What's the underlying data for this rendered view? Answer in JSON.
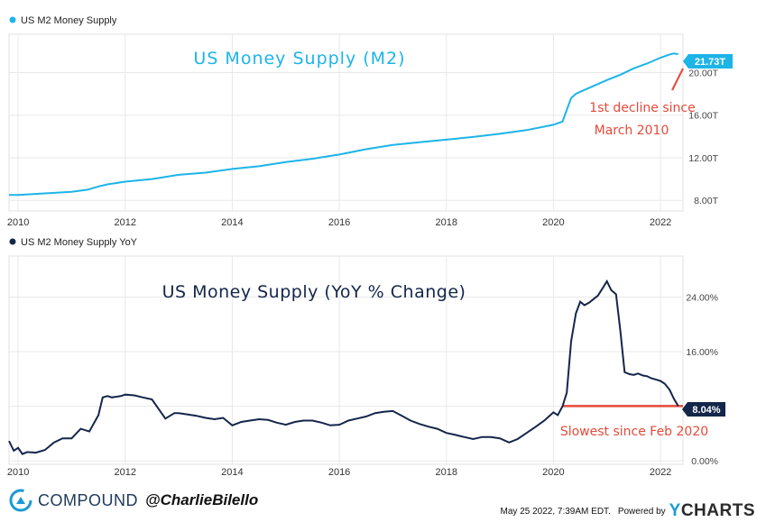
{
  "chart_data": [
    {
      "type": "line",
      "legend": "US M2 Money Supply",
      "annotation_title": "US Money Supply (M2)",
      "color": "#1db4e8",
      "x_ticks": [
        "2010",
        "2012",
        "2014",
        "2016",
        "2018",
        "2020",
        "2022"
      ],
      "y_ticks": [
        "8.00T",
        "12.00T",
        "16.00T",
        "20.00T"
      ],
      "ylim": [
        7.0,
        23.6
      ],
      "last_value_label": "21.73T",
      "callout": [
        "1st decline since",
        "March 2010"
      ],
      "series": [
        {
          "x": [
            2009.83,
            2010.0,
            2010.5,
            2011.0,
            2011.3,
            2011.5,
            2011.67,
            2012.0,
            2012.5,
            2013.0,
            2013.5,
            2014.0,
            2014.5,
            2015.0,
            2015.5,
            2016.0,
            2016.5,
            2017.0,
            2017.5,
            2018.0,
            2018.5,
            2019.0,
            2019.5,
            2020.0,
            2020.17,
            2020.25,
            2020.33,
            2020.42,
            2020.5,
            2020.75,
            2021.0,
            2021.25,
            2021.5,
            2021.75,
            2022.0,
            2022.17,
            2022.25,
            2022.33
          ],
          "y": [
            8.5,
            8.5,
            8.65,
            8.8,
            9.0,
            9.3,
            9.5,
            9.75,
            10.0,
            10.4,
            10.6,
            10.95,
            11.2,
            11.6,
            11.9,
            12.3,
            12.8,
            13.2,
            13.45,
            13.7,
            13.95,
            14.25,
            14.6,
            15.1,
            15.4,
            16.5,
            17.6,
            18.0,
            18.2,
            18.75,
            19.3,
            19.8,
            20.4,
            20.85,
            21.4,
            21.7,
            21.8,
            21.73
          ]
        }
      ]
    },
    {
      "type": "line",
      "legend": "US M2 Money Supply YoY",
      "annotation_title": "US Money Supply (YoY % Change)",
      "color": "#14264a",
      "x_ticks": [
        "2010",
        "2012",
        "2014",
        "2016",
        "2018",
        "2020",
        "2022"
      ],
      "y_ticks": [
        "0.00%",
        "8.00%",
        "16.00%",
        "24.00%"
      ],
      "ylim": [
        -0.5,
        30
      ],
      "last_value_label": "8.04%",
      "reference_line": {
        "y": 8.04,
        "x_start": 2020.17,
        "color": "#e54a3a"
      },
      "callout": [
        "Slowest since Feb 2020"
      ],
      "series": [
        {
          "x": [
            2009.83,
            2009.92,
            2010.0,
            2010.08,
            2010.17,
            2010.33,
            2010.5,
            2010.67,
            2010.83,
            2011.0,
            2011.17,
            2011.33,
            2011.5,
            2011.58,
            2011.67,
            2011.75,
            2011.92,
            2012.0,
            2012.17,
            2012.33,
            2012.5,
            2012.67,
            2012.75,
            2012.92,
            2013.0,
            2013.17,
            2013.33,
            2013.5,
            2013.67,
            2013.83,
            2014.0,
            2014.17,
            2014.33,
            2014.5,
            2014.67,
            2014.83,
            2015.0,
            2015.17,
            2015.33,
            2015.5,
            2015.67,
            2015.83,
            2016.0,
            2016.17,
            2016.33,
            2016.5,
            2016.67,
            2016.83,
            2017.0,
            2017.17,
            2017.33,
            2017.5,
            2017.67,
            2017.83,
            2018.0,
            2018.17,
            2018.33,
            2018.5,
            2018.67,
            2018.83,
            2019.0,
            2019.17,
            2019.33,
            2019.5,
            2019.67,
            2019.83,
            2020.0,
            2020.08,
            2020.17,
            2020.25,
            2020.33,
            2020.42,
            2020.5,
            2020.58,
            2020.67,
            2020.75,
            2020.83,
            2020.92,
            2021.0,
            2021.08,
            2021.17,
            2021.25,
            2021.33,
            2021.42,
            2021.5,
            2021.58,
            2021.67,
            2021.75,
            2021.83,
            2021.92,
            2022.0,
            2022.08,
            2022.17,
            2022.25,
            2022.33
          ],
          "y": [
            2.9,
            1.5,
            1.9,
            1.0,
            1.3,
            1.2,
            1.6,
            2.7,
            3.3,
            3.3,
            4.7,
            4.3,
            6.7,
            9.3,
            9.5,
            9.3,
            9.5,
            9.7,
            9.6,
            9.3,
            9.0,
            7.1,
            6.2,
            7.0,
            7.0,
            6.8,
            6.6,
            6.3,
            6.1,
            6.3,
            5.2,
            5.7,
            5.9,
            6.1,
            6.0,
            5.6,
            5.3,
            5.7,
            5.9,
            5.9,
            5.6,
            5.2,
            5.3,
            5.9,
            6.2,
            6.5,
            7.0,
            7.2,
            7.3,
            6.6,
            5.9,
            5.4,
            5.0,
            4.7,
            4.1,
            3.8,
            3.5,
            3.2,
            3.5,
            3.5,
            3.3,
            2.7,
            3.2,
            4.1,
            5.0,
            5.9,
            7.1,
            6.7,
            8.0,
            10.0,
            17.5,
            21.6,
            23.3,
            22.8,
            23.2,
            23.7,
            24.2,
            25.3,
            26.3,
            25.0,
            24.4,
            19.0,
            13.0,
            12.7,
            12.6,
            12.8,
            12.5,
            12.4,
            12.1,
            11.9,
            11.7,
            11.3,
            10.4,
            9.1,
            8.04
          ]
        }
      ]
    }
  ],
  "footer": {
    "brand": "COMPOUND",
    "handle": "@CharlieBilello",
    "timestamp": "May 25 2022, 7:39AM EDT.",
    "powered_by": "Powered by",
    "provider_y": "Y",
    "provider_rest": "CHARTS"
  },
  "colors": {
    "m2": "#1db4e8",
    "yoy": "#14264a",
    "annotation": "#e54a3a",
    "grid": "#e6e6e6"
  }
}
